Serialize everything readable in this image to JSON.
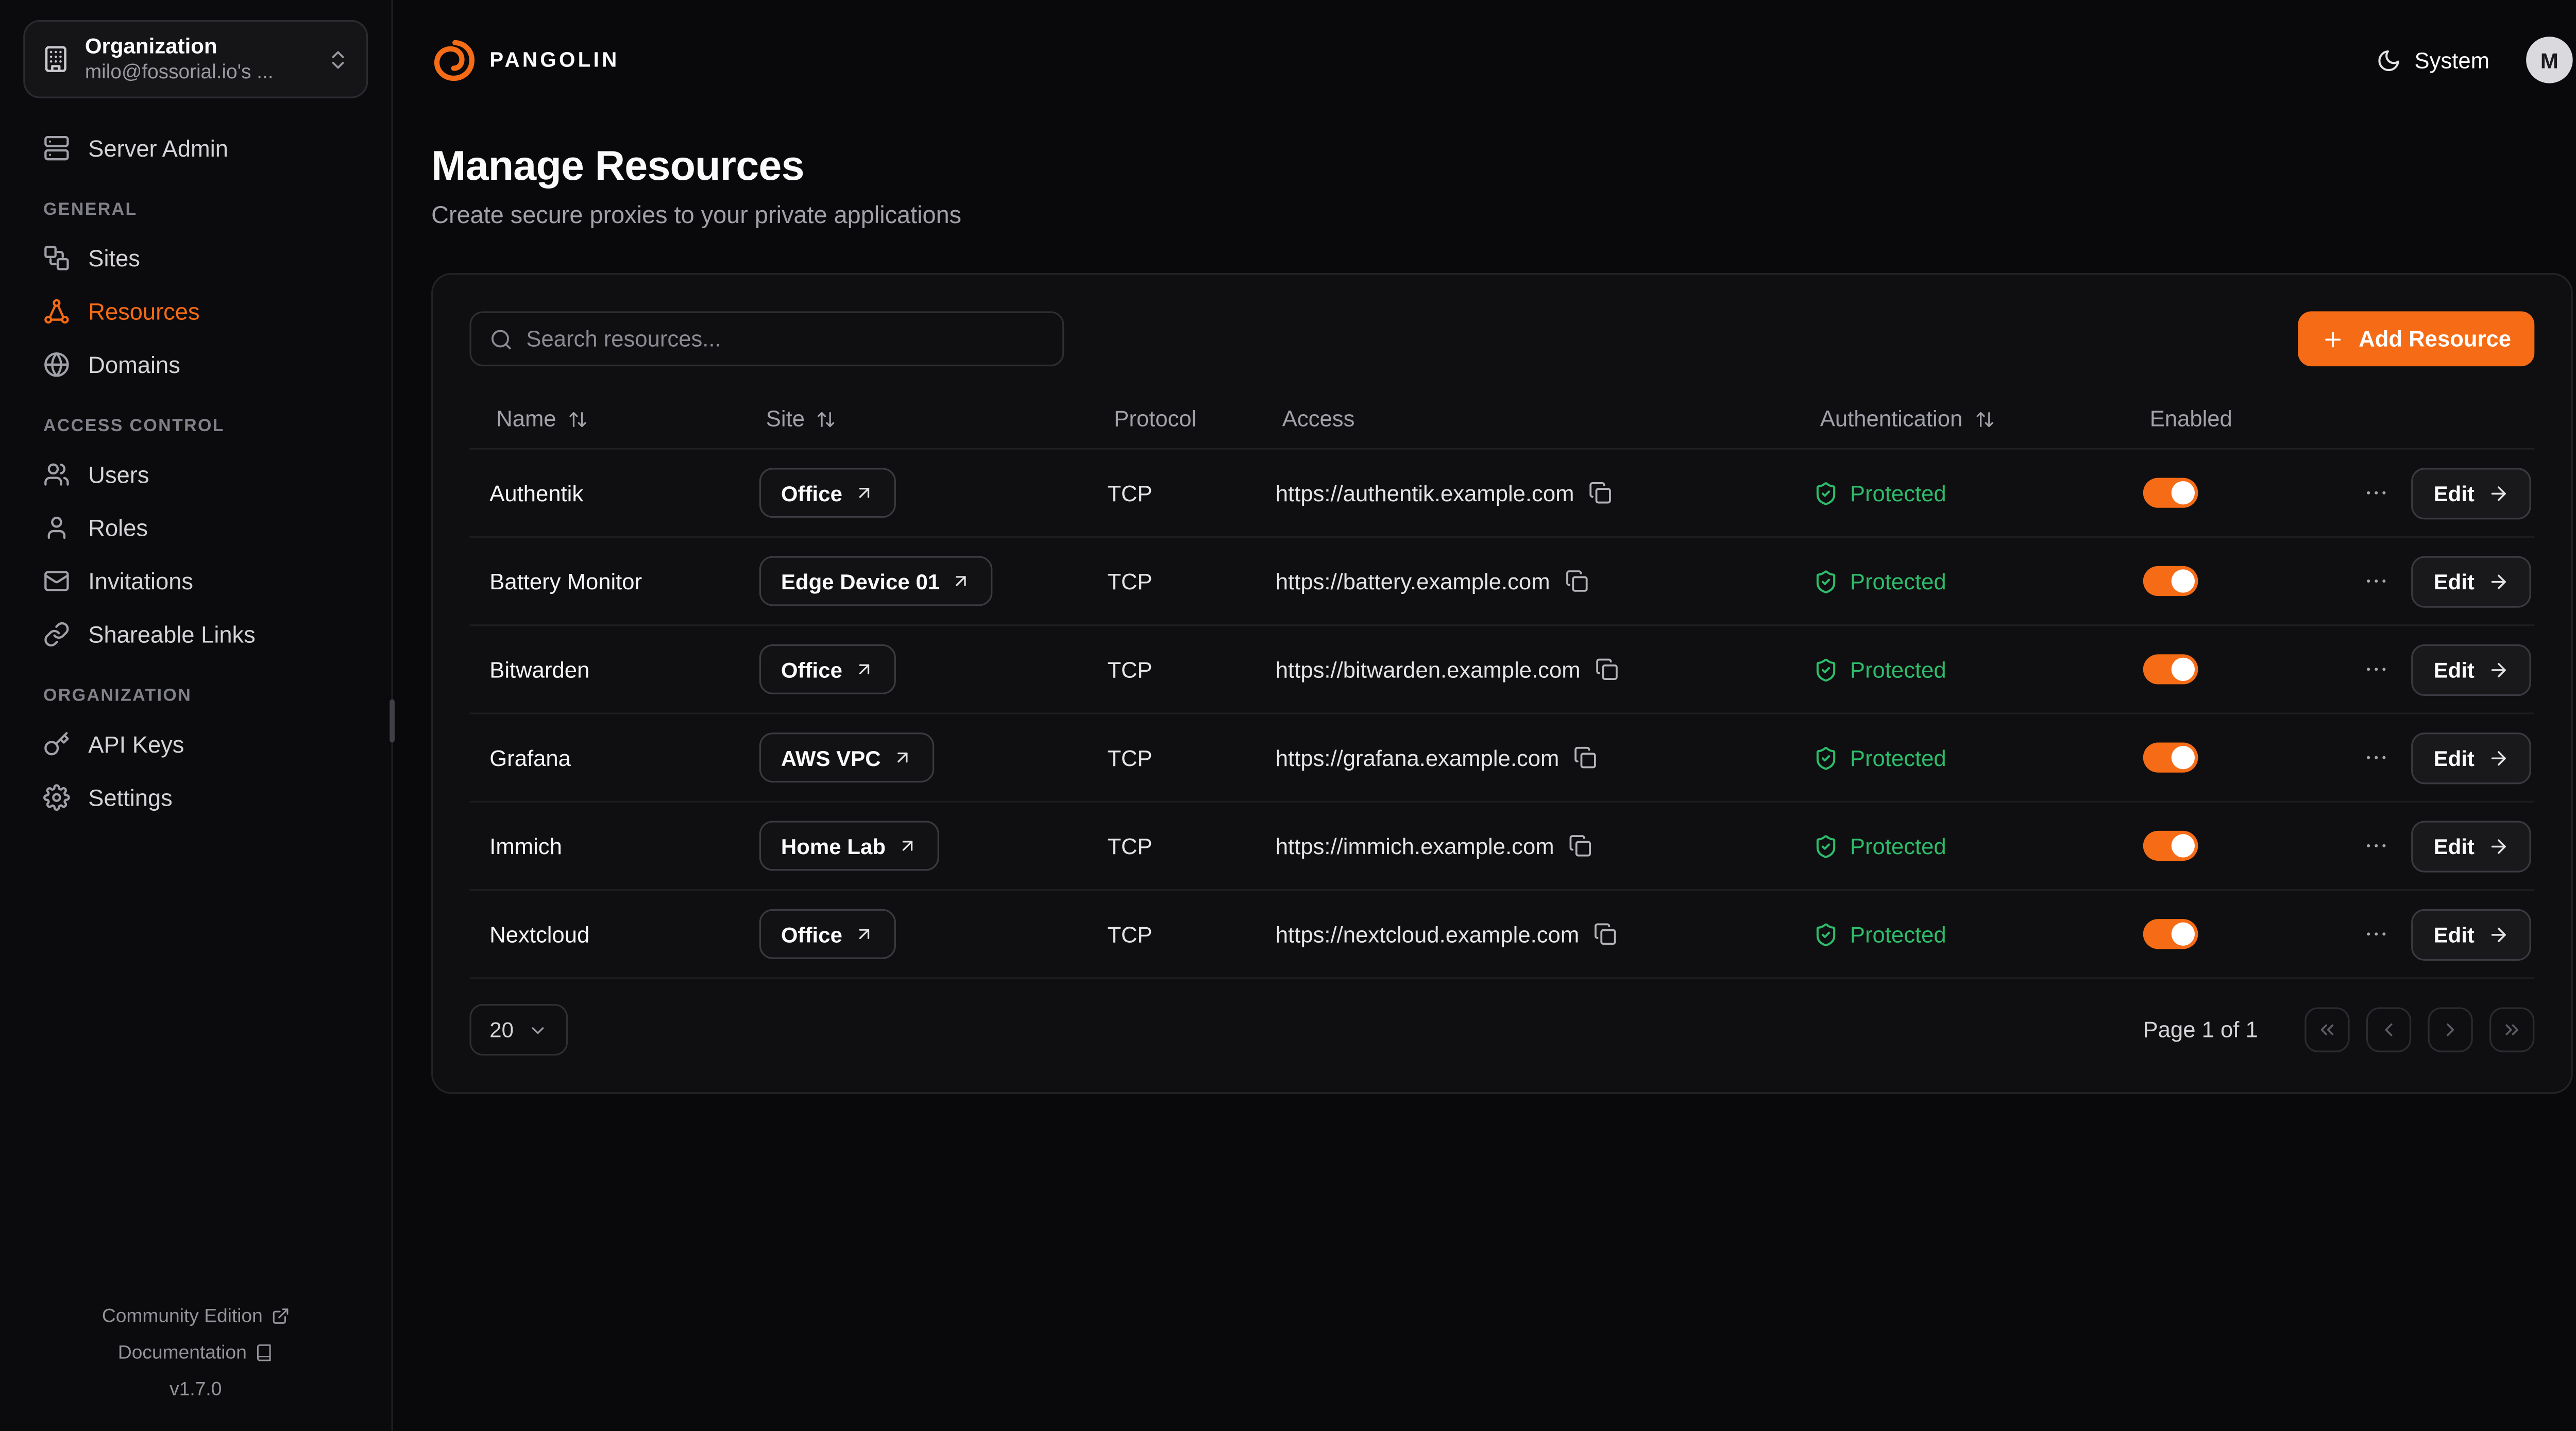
{
  "colors": {
    "accent": "#F66B15",
    "success": "#2EBD6B"
  },
  "sidebar": {
    "org": {
      "title": "Organization",
      "subtitle": "milo@fossorial.io's ...",
      "icon": "building-icon",
      "toggle_icon": "chevrons-up-down-icon"
    },
    "sections": [
      {
        "label": "",
        "items": [
          {
            "label": "Server Admin",
            "icon": "server-icon",
            "active": false
          }
        ]
      },
      {
        "label": "GENERAL",
        "items": [
          {
            "label": "Sites",
            "icon": "sites-icon",
            "active": false
          },
          {
            "label": "Resources",
            "icon": "resources-icon",
            "active": true
          },
          {
            "label": "Domains",
            "icon": "globe-icon",
            "active": false
          }
        ]
      },
      {
        "label": "ACCESS CONTROL",
        "items": [
          {
            "label": "Users",
            "icon": "users-icon",
            "active": false
          },
          {
            "label": "Roles",
            "icon": "user-icon",
            "active": false
          },
          {
            "label": "Invitations",
            "icon": "mail-icon",
            "active": false
          },
          {
            "label": "Shareable Links",
            "icon": "link-icon",
            "active": false
          }
        ]
      },
      {
        "label": "ORGANIZATION",
        "items": [
          {
            "label": "API Keys",
            "icon": "key-icon",
            "active": false
          },
          {
            "label": "Settings",
            "icon": "gear-icon",
            "active": false
          }
        ]
      }
    ],
    "footer": {
      "community_label": "Community Edition",
      "docs_label": "Documentation",
      "version": "v1.7.0"
    }
  },
  "header": {
    "brand": "PANGOLIN",
    "theme_label": "System",
    "avatar_initial": "M"
  },
  "page": {
    "title": "Manage Resources",
    "subtitle": "Create secure proxies to your private applications"
  },
  "toolbar": {
    "search_placeholder": "Search resources...",
    "add_label": "Add Resource"
  },
  "table": {
    "columns": [
      {
        "label": "Name",
        "sortable": true
      },
      {
        "label": "Site",
        "sortable": true
      },
      {
        "label": "Protocol",
        "sortable": false
      },
      {
        "label": "Access",
        "sortable": false
      },
      {
        "label": "Authentication",
        "sortable": true
      },
      {
        "label": "Enabled",
        "sortable": false
      }
    ],
    "edit_label": "Edit",
    "rows": [
      {
        "name": "Authentik",
        "site": "Office",
        "protocol": "TCP",
        "access": "https://authentik.example.com",
        "auth_status": "Protected",
        "enabled": true
      },
      {
        "name": "Battery Monitor",
        "site": "Edge Device 01",
        "protocol": "TCP",
        "access": "https://battery.example.com",
        "auth_status": "Protected",
        "enabled": true
      },
      {
        "name": "Bitwarden",
        "site": "Office",
        "protocol": "TCP",
        "access": "https://bitwarden.example.com",
        "auth_status": "Protected",
        "enabled": true
      },
      {
        "name": "Grafana",
        "site": "AWS VPC",
        "protocol": "TCP",
        "access": "https://grafana.example.com",
        "auth_status": "Protected",
        "enabled": true
      },
      {
        "name": "Immich",
        "site": "Home Lab",
        "protocol": "TCP",
        "access": "https://immich.example.com",
        "auth_status": "Protected",
        "enabled": true
      },
      {
        "name": "Nextcloud",
        "site": "Office",
        "protocol": "TCP",
        "access": "https://nextcloud.example.com",
        "auth_status": "Protected",
        "enabled": true
      }
    ]
  },
  "pagination": {
    "page_size": "20",
    "page_info": "Page 1 of 1"
  }
}
